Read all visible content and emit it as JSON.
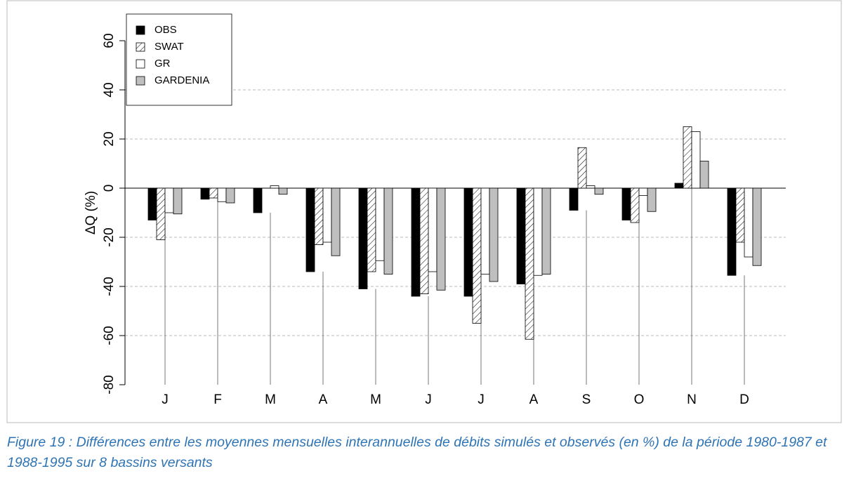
{
  "chart_data": {
    "type": "bar",
    "ylabel": "ΔQ (%)",
    "categories": [
      "J",
      "F",
      "M",
      "A",
      "M",
      "J",
      "J",
      "A",
      "S",
      "O",
      "N",
      "D"
    ],
    "series": [
      {
        "name": "OBS",
        "color": "#000000",
        "values": [
          -13,
          -4.5,
          -10,
          -34,
          -41,
          -44,
          -44,
          -39,
          -9,
          -13,
          2,
          -35.5
        ]
      },
      {
        "name": "SWAT",
        "color": "#ffffff",
        "pattern": "hatch",
        "values": [
          -21,
          -4,
          0,
          -23,
          -34,
          -43,
          -55,
          -61.5,
          16.5,
          -14,
          25,
          -22
        ]
      },
      {
        "name": "GR",
        "color": "#ffffff",
        "values": [
          -10,
          -5.5,
          1,
          -22,
          -29.5,
          -34,
          -35,
          -35.5,
          1,
          -3,
          23,
          -28
        ]
      },
      {
        "name": "GARDENIA",
        "color": "#bfbfbf",
        "values": [
          -10.5,
          -6,
          -2.5,
          -27.5,
          -35,
          -41.5,
          -38,
          -35,
          -2.5,
          -9.5,
          11,
          -31.5
        ]
      }
    ],
    "ylim": [
      -80,
      60
    ],
    "yticks": [
      -80,
      -60,
      -40,
      -20,
      0,
      20,
      40,
      60
    ],
    "grid": true,
    "legend": "upper left"
  },
  "caption": "Figure 19 : Différences entre les moyennes mensuelles interannuelles de débits simulés et observés (en %) de la période 1980-1987 et 1988-1995 sur 8 bassins versants"
}
